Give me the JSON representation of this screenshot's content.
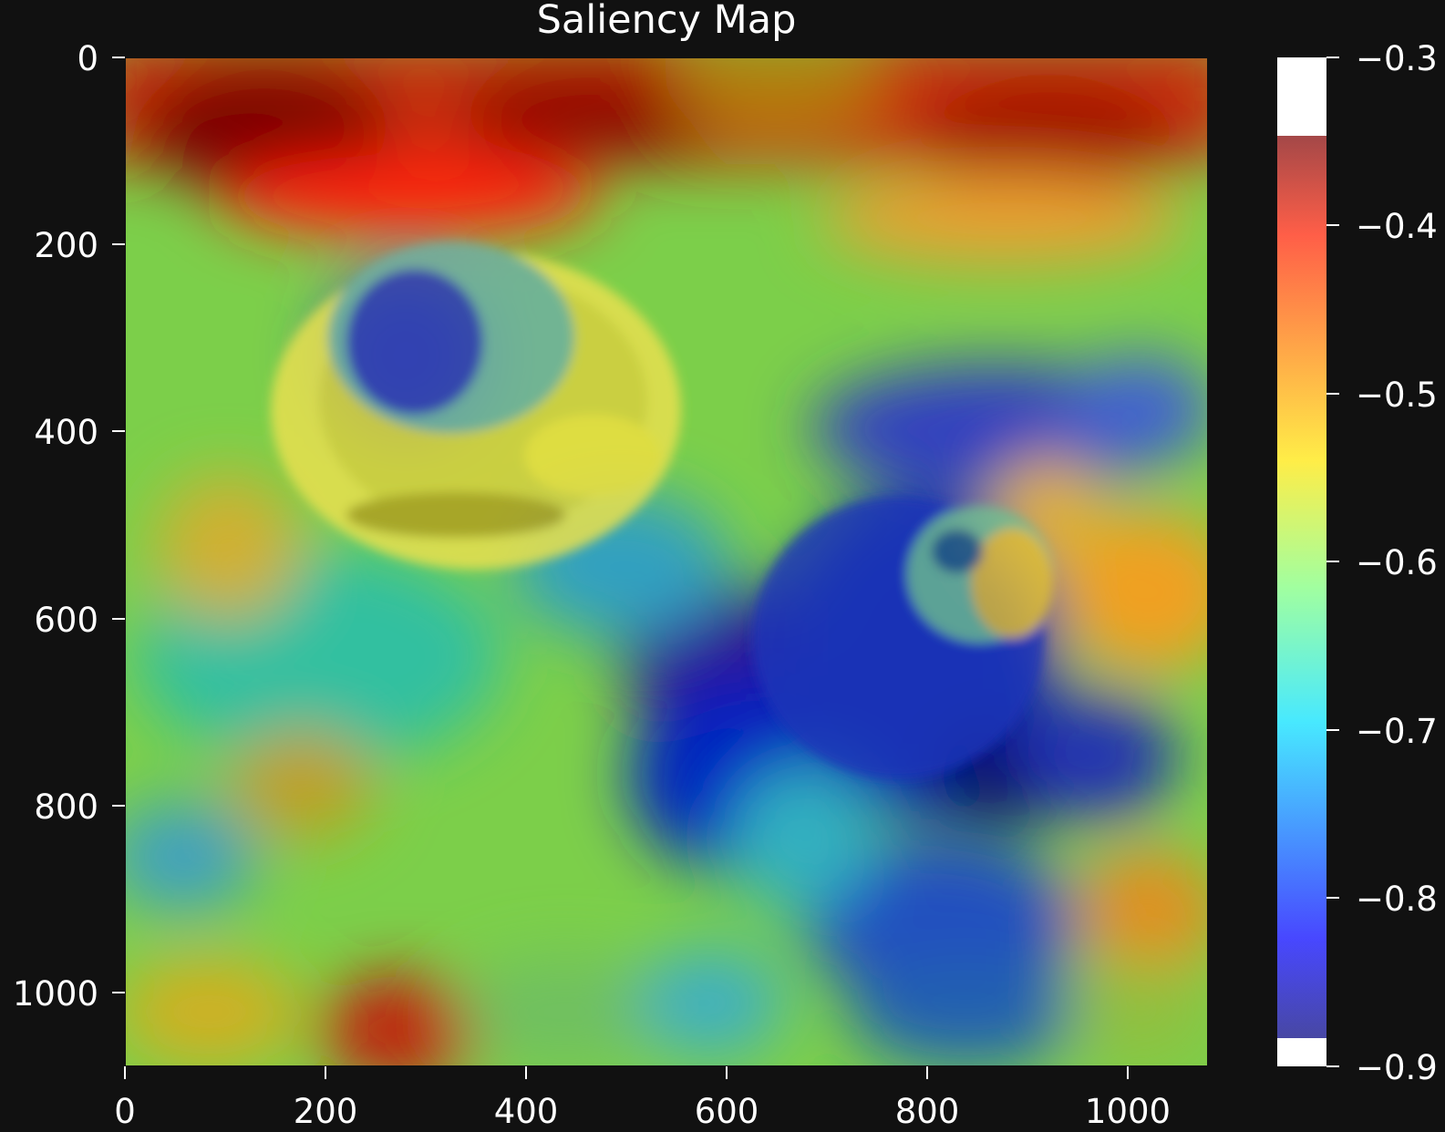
{
  "chart_data": {
    "type": "heatmap",
    "title": "Saliency Map",
    "xlabel": "",
    "ylabel": "",
    "xlim": [
      0,
      1080
    ],
    "ylim": [
      1080,
      0
    ],
    "x_ticks": [
      0,
      200,
      400,
      600,
      800,
      1000
    ],
    "x_tick_labels": [
      "0",
      "200",
      "400",
      "600",
      "800",
      "1000"
    ],
    "y_ticks": [
      0,
      200,
      400,
      600,
      800,
      1000
    ],
    "y_tick_labels": [
      "0",
      "200",
      "400",
      "600",
      "800",
      "1000"
    ],
    "colormap": "jet",
    "colorbar": {
      "range": [
        -0.9,
        -0.3
      ],
      "data_range": [
        -0.866,
        -0.346
      ],
      "ticks": [
        -0.3,
        -0.4,
        -0.5,
        -0.6,
        -0.7,
        -0.8,
        -0.9
      ],
      "tick_labels": [
        "−0.3",
        "−0.4",
        "−0.5",
        "−0.6",
        "−0.7",
        "−0.8",
        "−0.9"
      ]
    },
    "grid": false,
    "background_image": "still life: teacup with half lemon on a saucer and an apple on a checkered tablecloth",
    "colors": {
      "background": "#111111",
      "text": "#ffffff"
    }
  }
}
